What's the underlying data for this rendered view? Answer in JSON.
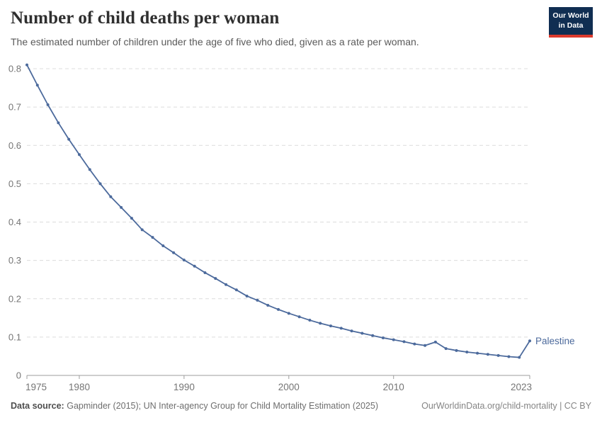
{
  "header": {
    "title": "Number of child deaths per woman",
    "subtitle": "The estimated number of children under the age of five who died, given as a rate per woman.",
    "logo": {
      "line1": "Our World",
      "line2": "in Data"
    }
  },
  "footer": {
    "datasource_label": "Data source:",
    "datasource_text": "Gapminder (2015); UN Inter-agency Group for Child Mortality Estimation (2025)",
    "link_text": "OurWorldinData.org/child-mortality | CC BY"
  },
  "colors": {
    "line": "#4C6A9C",
    "entity_label": "#4C6A9C",
    "grid": "#dcdcdc",
    "axis": "#9e9e9e",
    "tick_text": "#757575",
    "logo_bg": "#102e52",
    "logo_red": "#dc3a2d"
  },
  "chart_data": {
    "type": "line",
    "title": "Number of child deaths per woman",
    "subtitle": "The estimated number of children under the age of five who died, given as a rate per woman.",
    "xlabel": "",
    "ylabel": "",
    "xlim": [
      1975,
      2023
    ],
    "ylim": [
      0,
      0.8
    ],
    "xticks": [
      1975,
      1980,
      1990,
      2000,
      2010,
      2023
    ],
    "yticks": [
      0,
      0.1,
      0.2,
      0.3,
      0.4,
      0.5,
      0.6,
      0.7,
      0.8
    ],
    "ytick_labels": [
      "0",
      "0.1",
      "0.2",
      "0.3",
      "0.4",
      "0.5",
      "0.6",
      "0.7",
      "0.8"
    ],
    "grid": "horizontal-dashed",
    "legend_position": "end-of-line-label",
    "marker": "dot",
    "x": [
      1975,
      1976,
      1977,
      1978,
      1979,
      1980,
      1981,
      1982,
      1983,
      1984,
      1985,
      1986,
      1987,
      1988,
      1989,
      1990,
      1991,
      1992,
      1993,
      1994,
      1995,
      1996,
      1997,
      1998,
      1999,
      2000,
      2001,
      2002,
      2003,
      2004,
      2005,
      2006,
      2007,
      2008,
      2009,
      2010,
      2011,
      2012,
      2013,
      2014,
      2015,
      2016,
      2017,
      2018,
      2019,
      2020,
      2021,
      2022,
      2023
    ],
    "series": [
      {
        "name": "Palestine",
        "color": "#4C6A9C",
        "values": [
          0.81,
          0.757,
          0.706,
          0.659,
          0.616,
          0.576,
          0.537,
          0.5,
          0.466,
          0.438,
          0.41,
          0.38,
          0.36,
          0.338,
          0.32,
          0.301,
          0.285,
          0.268,
          0.253,
          0.237,
          0.223,
          0.207,
          0.196,
          0.183,
          0.172,
          0.162,
          0.153,
          0.144,
          0.136,
          0.129,
          0.123,
          0.116,
          0.11,
          0.104,
          0.098,
          0.093,
          0.088,
          0.082,
          0.078,
          0.087,
          0.07,
          0.065,
          0.061,
          0.058,
          0.055,
          0.052,
          0.049,
          0.047,
          0.09
        ]
      }
    ]
  }
}
